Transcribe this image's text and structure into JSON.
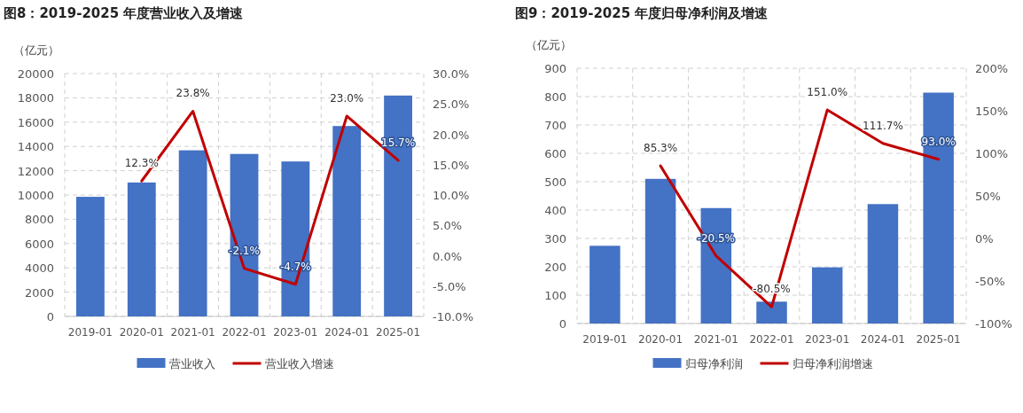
{
  "chart_data": [
    {
      "type": "bar",
      "title": "图8：2019-2025 年度营业收入及增速",
      "ylabel": "（亿元）",
      "categories": [
        "2019-01",
        "2020-01",
        "2021-01",
        "2022-01",
        "2023-01",
        "2024-01",
        "2025-01"
      ],
      "series": [
        {
          "name": "营业收入",
          "color": "#4472c4",
          "values": [
            9850,
            11030,
            13680,
            13380,
            12760,
            15680,
            18190
          ]
        },
        {
          "name": "营业收入增速",
          "type": "line",
          "axis": "y2",
          "color": "#c00000",
          "values": [
            null,
            12.3,
            23.8,
            -2.1,
            -4.7,
            23.0,
            15.7
          ],
          "value_labels": [
            null,
            "12.3%",
            "23.8%",
            "-2.1%",
            "-4.7%",
            "23.0%",
            "15.7%"
          ]
        }
      ],
      "ylim": [
        0,
        20000
      ],
      "yticks": [
        0,
        2000,
        4000,
        6000,
        8000,
        10000,
        12000,
        14000,
        16000,
        18000,
        20000
      ],
      "y2lim": [
        -10,
        30
      ],
      "y2ticks": [
        {
          "value": -10,
          "label": "-10.0%"
        },
        {
          "value": -5,
          "label": "-5.0%"
        },
        {
          "value": 0,
          "label": "0.0%"
        },
        {
          "value": 5,
          "label": "5.0%"
        },
        {
          "value": 10,
          "label": "10.0%"
        },
        {
          "value": 15,
          "label": "15.0%"
        },
        {
          "value": 20,
          "label": "20.0%"
        },
        {
          "value": 25,
          "label": "25.0%"
        },
        {
          "value": 30,
          "label": "30.0%"
        }
      ],
      "grid": true,
      "legend": "bottom",
      "marker": "none",
      "line_style": "solid"
    },
    {
      "type": "bar",
      "title": "图9：2019-2025 年度归母净利润及增速",
      "ylabel": "（亿元）",
      "categories": [
        "2019-01",
        "2020-01",
        "2021-01",
        "2022-01",
        "2023-01",
        "2024-01",
        "2025-01"
      ],
      "series": [
        {
          "name": "归母净利润",
          "color": "#4472c4",
          "values": [
            274,
            510,
            407,
            77,
            198,
            421,
            814
          ]
        },
        {
          "name": "归母净利润增速",
          "type": "line",
          "axis": "y2",
          "color": "#c00000",
          "values": [
            null,
            85.3,
            -20.5,
            -80.5,
            151.0,
            111.7,
            93.0
          ],
          "value_labels": [
            null,
            "85.3%",
            "-20.5%",
            "-80.5%",
            "151.0%",
            "111.7%",
            "93.0%"
          ]
        }
      ],
      "ylim": [
        0,
        900
      ],
      "yticks": [
        0,
        100,
        200,
        300,
        400,
        500,
        600,
        700,
        800,
        900
      ],
      "y2lim": [
        -100,
        200
      ],
      "y2ticks": [
        {
          "value": -100,
          "label": "-100%"
        },
        {
          "value": -50,
          "label": "-50%"
        },
        {
          "value": 0,
          "label": "0%"
        },
        {
          "value": 50,
          "label": "50%"
        },
        {
          "value": 100,
          "label": "100%"
        },
        {
          "value": 150,
          "label": "150%"
        },
        {
          "value": 200,
          "label": "200%"
        }
      ],
      "grid": true,
      "legend": "bottom",
      "marker": "none",
      "line_style": "solid"
    }
  ]
}
